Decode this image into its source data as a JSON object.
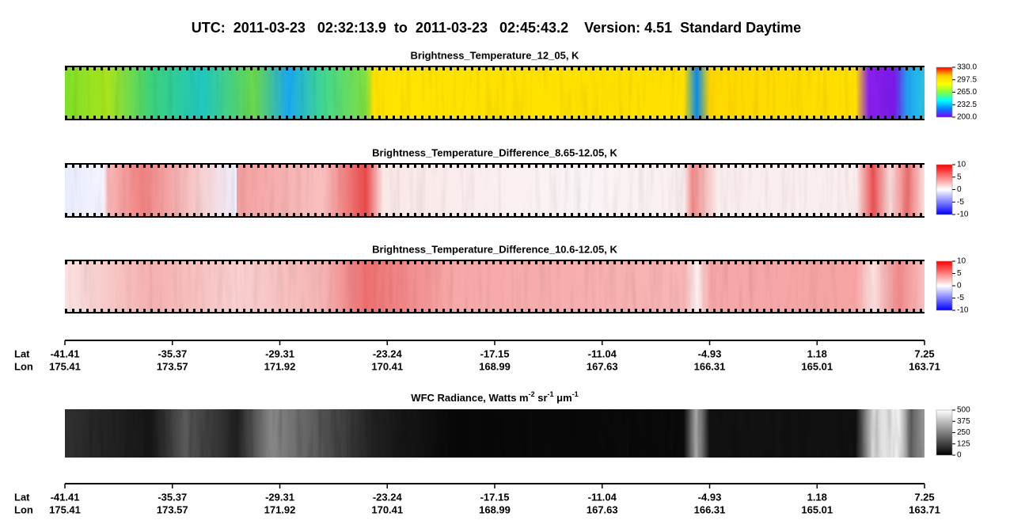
{
  "title": "UTC:  2011-03-23   02:32:13.9  to  2011-03-23   02:45:43.2    Version: 4.51  Standard Daytime",
  "chart_data": [
    {
      "type": "strip",
      "title": "Brightness_Temperature_12_05, K",
      "colormap": "jet",
      "clim": [
        200,
        330
      ],
      "cticks": [
        {
          "value": 330,
          "label": "330.0"
        },
        297.5,
        {
          "value": 265,
          "label": "265.0"
        },
        232.5,
        {
          "value": 200,
          "label": "200.0"
        }
      ]
    },
    {
      "type": "strip",
      "title": "Brightness_Temperature_Difference_8.65-12.05, K",
      "colormap": "bwr",
      "clim": [
        -10,
        10
      ],
      "cticks": [
        10,
        5,
        0,
        -5,
        -10
      ]
    },
    {
      "type": "strip",
      "title": "Brightness_Temperature_Difference_10.6-12.05, K",
      "colormap": "bwr",
      "clim": [
        -10,
        10
      ],
      "cticks": [
        10,
        5,
        0,
        -5,
        -10
      ]
    },
    {
      "type": "latlon",
      "row_labels": [
        "Lat",
        "Lon"
      ],
      "lat": [
        -41.41,
        -35.37,
        -29.31,
        -23.24,
        -17.15,
        -11.04,
        -4.93,
        1.18,
        7.25
      ],
      "lon": [
        175.41,
        173.57,
        171.92,
        170.41,
        168.99,
        167.63,
        166.31,
        165.01,
        163.71
      ]
    },
    {
      "type": "strip",
      "title_parts": [
        {
          "text": "WFC Radiance, Watts m"
        },
        {
          "text": "-2",
          "sup": true
        },
        {
          "text": " sr"
        },
        {
          "text": "-1",
          "sup": true
        },
        {
          "text": " μm"
        },
        {
          "text": "-1",
          "sup": true
        }
      ],
      "colormap": "gray",
      "clim": [
        0,
        500
      ],
      "cticks": [
        500,
        375,
        250,
        125,
        0
      ]
    },
    {
      "type": "latlon",
      "row_labels": [
        "Lat",
        "Lon"
      ],
      "lat": [
        -41.41,
        -35.37,
        -29.31,
        -23.24,
        -17.15,
        -11.04,
        -4.93,
        1.18,
        7.25
      ],
      "lon": [
        175.41,
        173.57,
        171.92,
        170.41,
        168.99,
        167.63,
        166.31,
        165.01,
        163.71
      ]
    }
  ]
}
